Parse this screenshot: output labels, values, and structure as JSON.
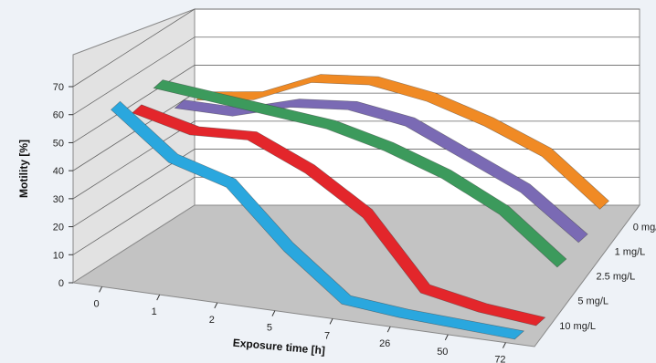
{
  "chart_data": {
    "type": "line",
    "subtype": "3d-ribbon",
    "title": "",
    "xlabel": "Exposure time [h]",
    "ylabel": "Motility [%]",
    "zlabel": "",
    "ylim": [
      0,
      70
    ],
    "yticks": [
      0,
      10,
      20,
      30,
      40,
      50,
      60,
      70
    ],
    "categories": [
      "0",
      "1",
      "2",
      "5",
      "7",
      "26",
      "50",
      "72"
    ],
    "series": [
      {
        "name": "0 mg/L",
        "color": "#f08a24",
        "values": [
          46,
          49,
          58,
          60,
          57,
          51,
          43,
          27
        ]
      },
      {
        "name": "1 mg/L",
        "color": "#7a6ab4",
        "values": [
          48,
          48,
          54,
          56,
          53,
          44,
          35,
          20
        ]
      },
      {
        "name": "2.5 mg/L",
        "color": "#3c9a5c",
        "values": [
          60,
          58,
          56,
          54,
          49,
          42,
          32,
          16
        ]
      },
      {
        "name": "5 mg/L",
        "color": "#e3262b",
        "values": [
          56,
          51,
          52,
          43,
          30,
          6,
          2,
          0
        ]
      },
      {
        "name": "10 mg/L",
        "color": "#2aa7de",
        "values": [
          62,
          46,
          40,
          20,
          4,
          2,
          1,
          0
        ]
      }
    ],
    "grid": true,
    "legend": "depth axis labels on right"
  }
}
